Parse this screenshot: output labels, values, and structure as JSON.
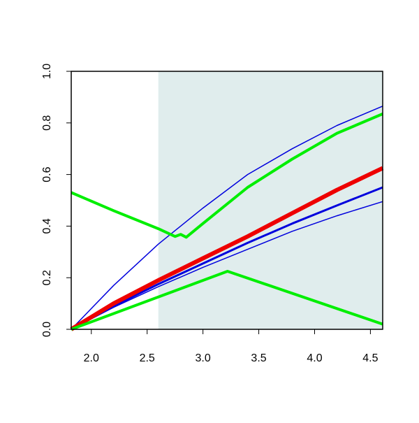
{
  "chart_data": {
    "type": "line",
    "xlim": [
      1.82,
      4.61
    ],
    "ylim": [
      0,
      1
    ],
    "xticks": [
      {
        "value": 2.0,
        "label": "2.0"
      },
      2.5,
      {
        "value": 3.0,
        "label": "3.0"
      },
      3.5,
      {
        "value": 4.0,
        "label": "4.0"
      },
      4.5
    ],
    "yticks": [
      {
        "value": 0,
        "label": "0.0"
      },
      0.2,
      0.4,
      0.6,
      0.8,
      {
        "value": 1,
        "label": "1.0"
      }
    ],
    "shade": {
      "from": 2.6,
      "color": "#e0eded"
    },
    "series": [
      {
        "color": "#0000dd",
        "width": 1.5,
        "x": [
          1.82,
          2.2,
          2.6,
          3.0,
          3.4,
          3.8,
          4.2,
          4.61
        ],
        "values": [
          0,
          0.17,
          0.33,
          0.47,
          0.6,
          0.7,
          0.79,
          0.865
        ]
      },
      {
        "color": "#0000dd",
        "width": 1.5,
        "x": [
          1.82,
          2.2,
          2.6,
          3.0,
          3.4,
          3.8,
          4.2,
          4.61
        ],
        "values": [
          0,
          0.085,
          0.165,
          0.24,
          0.31,
          0.38,
          0.44,
          0.495
        ]
      },
      {
        "color": "#0000dd",
        "width": 3,
        "x": [
          1.82,
          2.2,
          2.6,
          3.0,
          3.4,
          3.8,
          4.2,
          4.61
        ],
        "values": [
          0,
          0.09,
          0.175,
          0.255,
          0.335,
          0.41,
          0.48,
          0.55
        ]
      },
      {
        "color": "#ee0000",
        "width": 6,
        "x": [
          1.82,
          2.2,
          2.6,
          3.0,
          3.4,
          3.8,
          4.2,
          4.61
        ],
        "values": [
          0,
          0.1,
          0.19,
          0.275,
          0.36,
          0.45,
          0.54,
          0.625
        ]
      },
      {
        "color": "#00ee00",
        "width": 4,
        "x": [
          1.82,
          2.2,
          2.6,
          2.75,
          2.8,
          2.85,
          3.0,
          3.4,
          3.8,
          4.2,
          4.61
        ],
        "values": [
          0.53,
          0.46,
          0.39,
          0.36,
          0.368,
          0.357,
          0.41,
          0.55,
          0.66,
          0.76,
          0.835
        ]
      },
      {
        "color": "#00ee00",
        "width": 4,
        "x": [
          1.82,
          3.22,
          4.61
        ],
        "values": [
          0,
          0.225,
          0.02
        ]
      }
    ]
  }
}
